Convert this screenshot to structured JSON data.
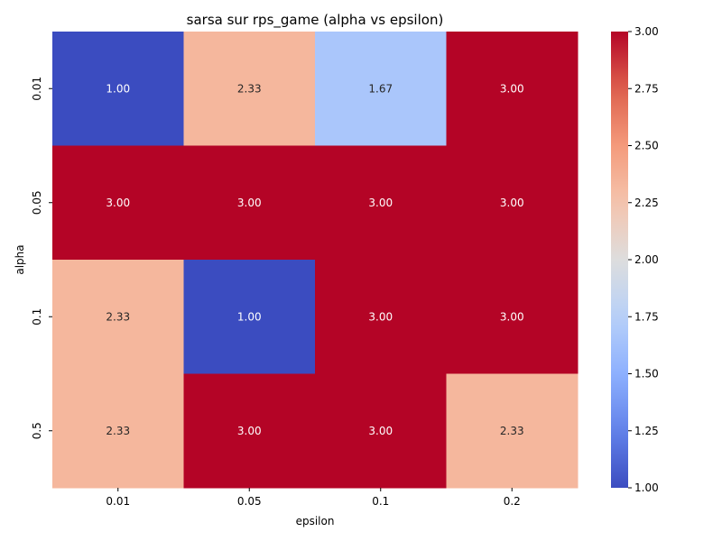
{
  "chart_data": {
    "type": "heatmap",
    "title": "sarsa sur rps_game (alpha vs epsilon)",
    "xlabel": "epsilon",
    "ylabel": "alpha",
    "x_categories": [
      "0.01",
      "0.05",
      "0.1",
      "0.2"
    ],
    "y_categories": [
      "0.01",
      "0.05",
      "0.1",
      "0.5"
    ],
    "values": [
      [
        1.0,
        2.33,
        1.67,
        3.0
      ],
      [
        3.0,
        3.0,
        3.0,
        3.0
      ],
      [
        2.33,
        1.0,
        3.0,
        3.0
      ],
      [
        2.33,
        3.0,
        3.0,
        2.33
      ]
    ],
    "value_labels": [
      [
        "1.00",
        "2.33",
        "1.67",
        "3.00"
      ],
      [
        "3.00",
        "3.00",
        "3.00",
        "3.00"
      ],
      [
        "2.33",
        "1.00",
        "3.00",
        "3.00"
      ],
      [
        "2.33",
        "3.00",
        "3.00",
        "2.33"
      ]
    ],
    "colormap": "coolwarm",
    "vmin": 1.0,
    "vmax": 3.0,
    "colorbar_ticks": [
      "1.00",
      "1.25",
      "1.50",
      "1.75",
      "2.00",
      "2.25",
      "2.50",
      "2.75",
      "3.00"
    ],
    "colorbar_values": [
      1.0,
      1.25,
      1.5,
      1.75,
      2.0,
      2.25,
      2.5,
      2.75,
      3.0
    ]
  }
}
